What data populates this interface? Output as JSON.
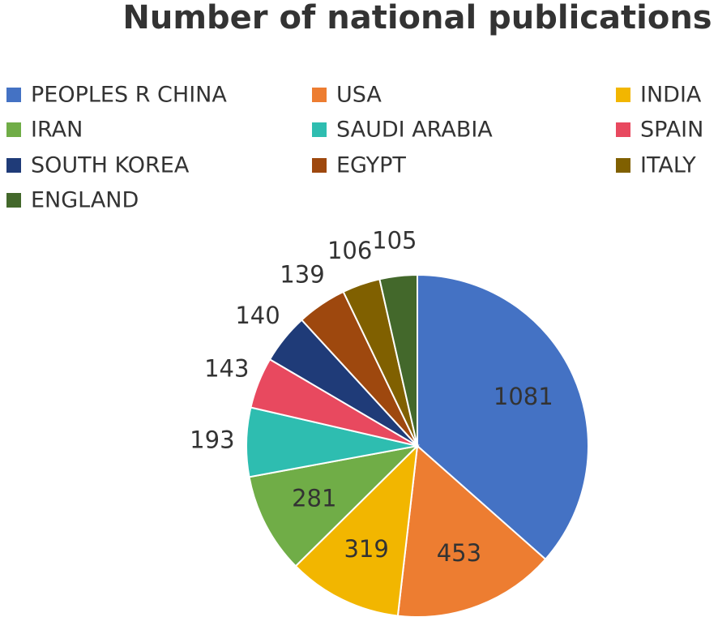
{
  "chart_data": {
    "type": "pie",
    "title": "Number of national publications",
    "categories": [
      "PEOPLES R CHINA",
      "USA",
      "INDIA",
      "IRAN",
      "SAUDI ARABIA",
      "SPAIN",
      "SOUTH KOREA",
      "EGYPT",
      "ITALY",
      "ENGLAND"
    ],
    "values": [
      1081,
      453,
      319,
      281,
      193,
      143,
      140,
      139,
      106,
      105
    ],
    "colors": [
      "#4472c4",
      "#ed7d31",
      "#f2b600",
      "#70ad47",
      "#2ebdb0",
      "#e8495f",
      "#1f3b78",
      "#9e480e",
      "#806000",
      "#43682b"
    ],
    "legend": "top"
  }
}
